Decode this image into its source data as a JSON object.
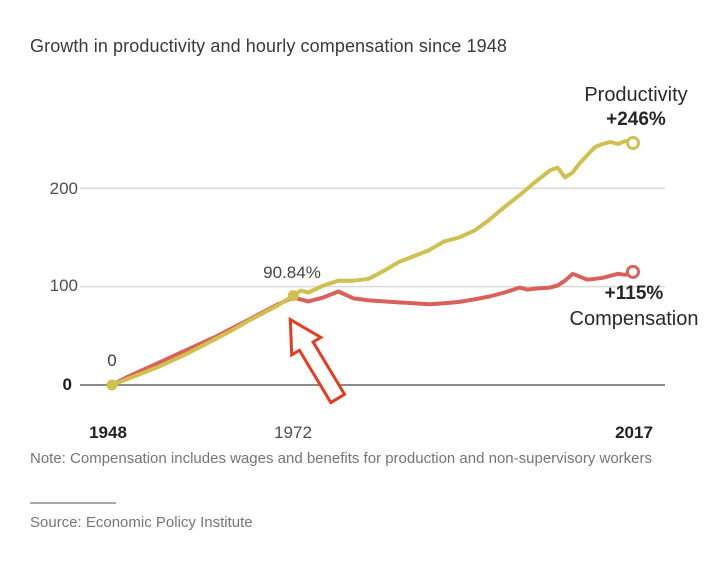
{
  "title": "Growth in productivity and hourly compensation since 1948",
  "note": "Note: Compensation includes wages and benefits for production and non-supervisory workers",
  "source": "Source: Economic Policy Institute",
  "chart_data": {
    "type": "line",
    "title": "Growth in productivity and hourly compensation since 1948",
    "xlabel": "",
    "ylabel": "",
    "grid": true,
    "x_axis": {
      "ticks": [
        "1948",
        "1972",
        "2017"
      ],
      "range": [
        1948,
        2017
      ]
    },
    "y_axis": {
      "ticks": [
        "0",
        "100",
        "200"
      ],
      "gridline_values": [
        0,
        100,
        200
      ],
      "range": [
        0,
        260
      ]
    },
    "series": [
      {
        "name": "Productivity",
        "end_label": "+246%",
        "color": "#d0c04f",
        "points": [
          [
            1948,
            0
          ],
          [
            1950,
            6
          ],
          [
            1952,
            12
          ],
          [
            1954,
            18
          ],
          [
            1956,
            25
          ],
          [
            1958,
            32
          ],
          [
            1960,
            40
          ],
          [
            1962,
            48
          ],
          [
            1964,
            56
          ],
          [
            1966,
            65
          ],
          [
            1968,
            73
          ],
          [
            1970,
            81
          ],
          [
            1972,
            90.84
          ],
          [
            1973,
            96
          ],
          [
            1974,
            94
          ],
          [
            1976,
            101
          ],
          [
            1978,
            106
          ],
          [
            1980,
            106
          ],
          [
            1982,
            108
          ],
          [
            1984,
            116
          ],
          [
            1986,
            125
          ],
          [
            1988,
            131
          ],
          [
            1990,
            137
          ],
          [
            1992,
            146
          ],
          [
            1994,
            150
          ],
          [
            1996,
            157
          ],
          [
            1998,
            168
          ],
          [
            2000,
            181
          ],
          [
            2002,
            193
          ],
          [
            2004,
            206
          ],
          [
            2006,
            218
          ],
          [
            2007,
            221
          ],
          [
            2008,
            211
          ],
          [
            2009,
            216
          ],
          [
            2010,
            226
          ],
          [
            2011,
            234
          ],
          [
            2012,
            242
          ],
          [
            2013,
            245
          ],
          [
            2014,
            247
          ],
          [
            2015,
            245
          ],
          [
            2016,
            248
          ],
          [
            2017,
            246
          ]
        ]
      },
      {
        "name": "Compensation",
        "end_label": "+115%",
        "color": "#d9615a",
        "points": [
          [
            1948,
            0
          ],
          [
            1950,
            8
          ],
          [
            1952,
            15
          ],
          [
            1954,
            22
          ],
          [
            1956,
            29
          ],
          [
            1958,
            36
          ],
          [
            1960,
            43
          ],
          [
            1962,
            50
          ],
          [
            1964,
            58
          ],
          [
            1966,
            66
          ],
          [
            1968,
            74
          ],
          [
            1970,
            82
          ],
          [
            1972,
            89
          ],
          [
            1974,
            85
          ],
          [
            1976,
            89
          ],
          [
            1978,
            95
          ],
          [
            1980,
            88
          ],
          [
            1982,
            86
          ],
          [
            1984,
            85
          ],
          [
            1986,
            84
          ],
          [
            1988,
            83
          ],
          [
            1990,
            82
          ],
          [
            1992,
            83
          ],
          [
            1994,
            84.5
          ],
          [
            1996,
            87
          ],
          [
            1998,
            90
          ],
          [
            2000,
            94
          ],
          [
            2002,
            99
          ],
          [
            2003,
            97
          ],
          [
            2004,
            98
          ],
          [
            2006,
            99
          ],
          [
            2007,
            101
          ],
          [
            2008,
            106
          ],
          [
            2009,
            113
          ],
          [
            2010,
            110
          ],
          [
            2011,
            107
          ],
          [
            2012,
            108
          ],
          [
            2013,
            109
          ],
          [
            2014,
            111
          ],
          [
            2015,
            113
          ],
          [
            2016,
            112
          ],
          [
            2017,
            115
          ]
        ]
      }
    ],
    "markers": [
      {
        "series": 0,
        "point": [
          1948,
          0
        ],
        "style": "filled"
      },
      {
        "series": 0,
        "point": [
          1972,
          90.84
        ],
        "style": "filled"
      },
      {
        "series": 0,
        "point": [
          2017,
          246
        ],
        "style": "open"
      },
      {
        "series": 1,
        "point": [
          2017,
          115
        ],
        "style": "open"
      }
    ],
    "annotations": {
      "start_label": "0",
      "divergence_label": "90.84%",
      "divergence_point": [
        1972,
        90.84
      ],
      "arrow_color": "#e83a1d",
      "arrow_direction": "up-left"
    },
    "legend_position": "inline-right"
  }
}
